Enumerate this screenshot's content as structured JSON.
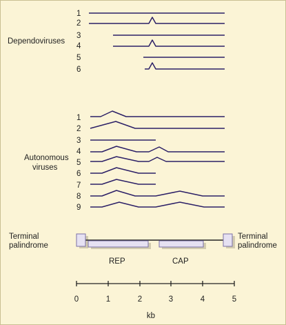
{
  "groups": {
    "dependoviruses": "Dependoviruses",
    "autonomous_line1": "Autonomous",
    "autonomous_line2": "viruses"
  },
  "dependo_numbers": [
    "1",
    "2",
    "3",
    "4",
    "5",
    "6"
  ],
  "auto_numbers": [
    "1",
    "2",
    "3",
    "4",
    "5",
    "6",
    "7",
    "8",
    "9"
  ],
  "genome": {
    "left_terminal_line1": "Terminal",
    "left_terminal_line2": "palindrome",
    "right_terminal_line1": "Terminal",
    "right_terminal_line2": "palindrome",
    "rep_label": "REP",
    "cap_label": "CAP"
  },
  "axis": {
    "ticks": [
      "0",
      "1",
      "2",
      "3",
      "4",
      "5"
    ],
    "unit": "kb"
  },
  "colors": {
    "background": "#fbf4d6",
    "transcript_line": "#2b1f66",
    "box_fill": "#e6e1f2",
    "box_stroke": "#7b70a6"
  }
}
